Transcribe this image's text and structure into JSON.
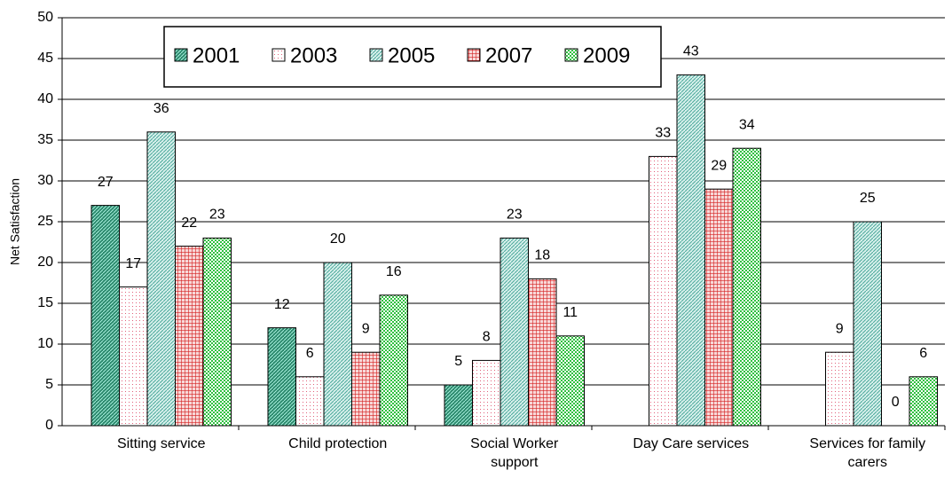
{
  "chart_data": {
    "type": "bar",
    "y_label": "Net Satisfaction",
    "categories": [
      "Sitting service",
      "Child protection",
      "Social Worker support",
      "Day Care services",
      "Services for family carers"
    ],
    "series": [
      {
        "name": "2001",
        "color": "#2e8b6f",
        "values": [
          27,
          12,
          5,
          null,
          null
        ]
      },
      {
        "name": "2003",
        "color": "#e0607a",
        "values": [
          17,
          6,
          8,
          33,
          9
        ]
      },
      {
        "name": "2005",
        "color": "#4aa89a",
        "values": [
          36,
          20,
          23,
          43,
          25
        ]
      },
      {
        "name": "2007",
        "color": "#d42020",
        "values": [
          22,
          9,
          18,
          29,
          0
        ]
      },
      {
        "name": "2009",
        "color": "#30c040",
        "values": [
          23,
          16,
          11,
          34,
          6
        ]
      }
    ],
    "ylim": [
      0,
      50
    ],
    "yticks": [
      0,
      5,
      10,
      15,
      20,
      25,
      30,
      35,
      40,
      45,
      50
    ],
    "grid": true
  }
}
